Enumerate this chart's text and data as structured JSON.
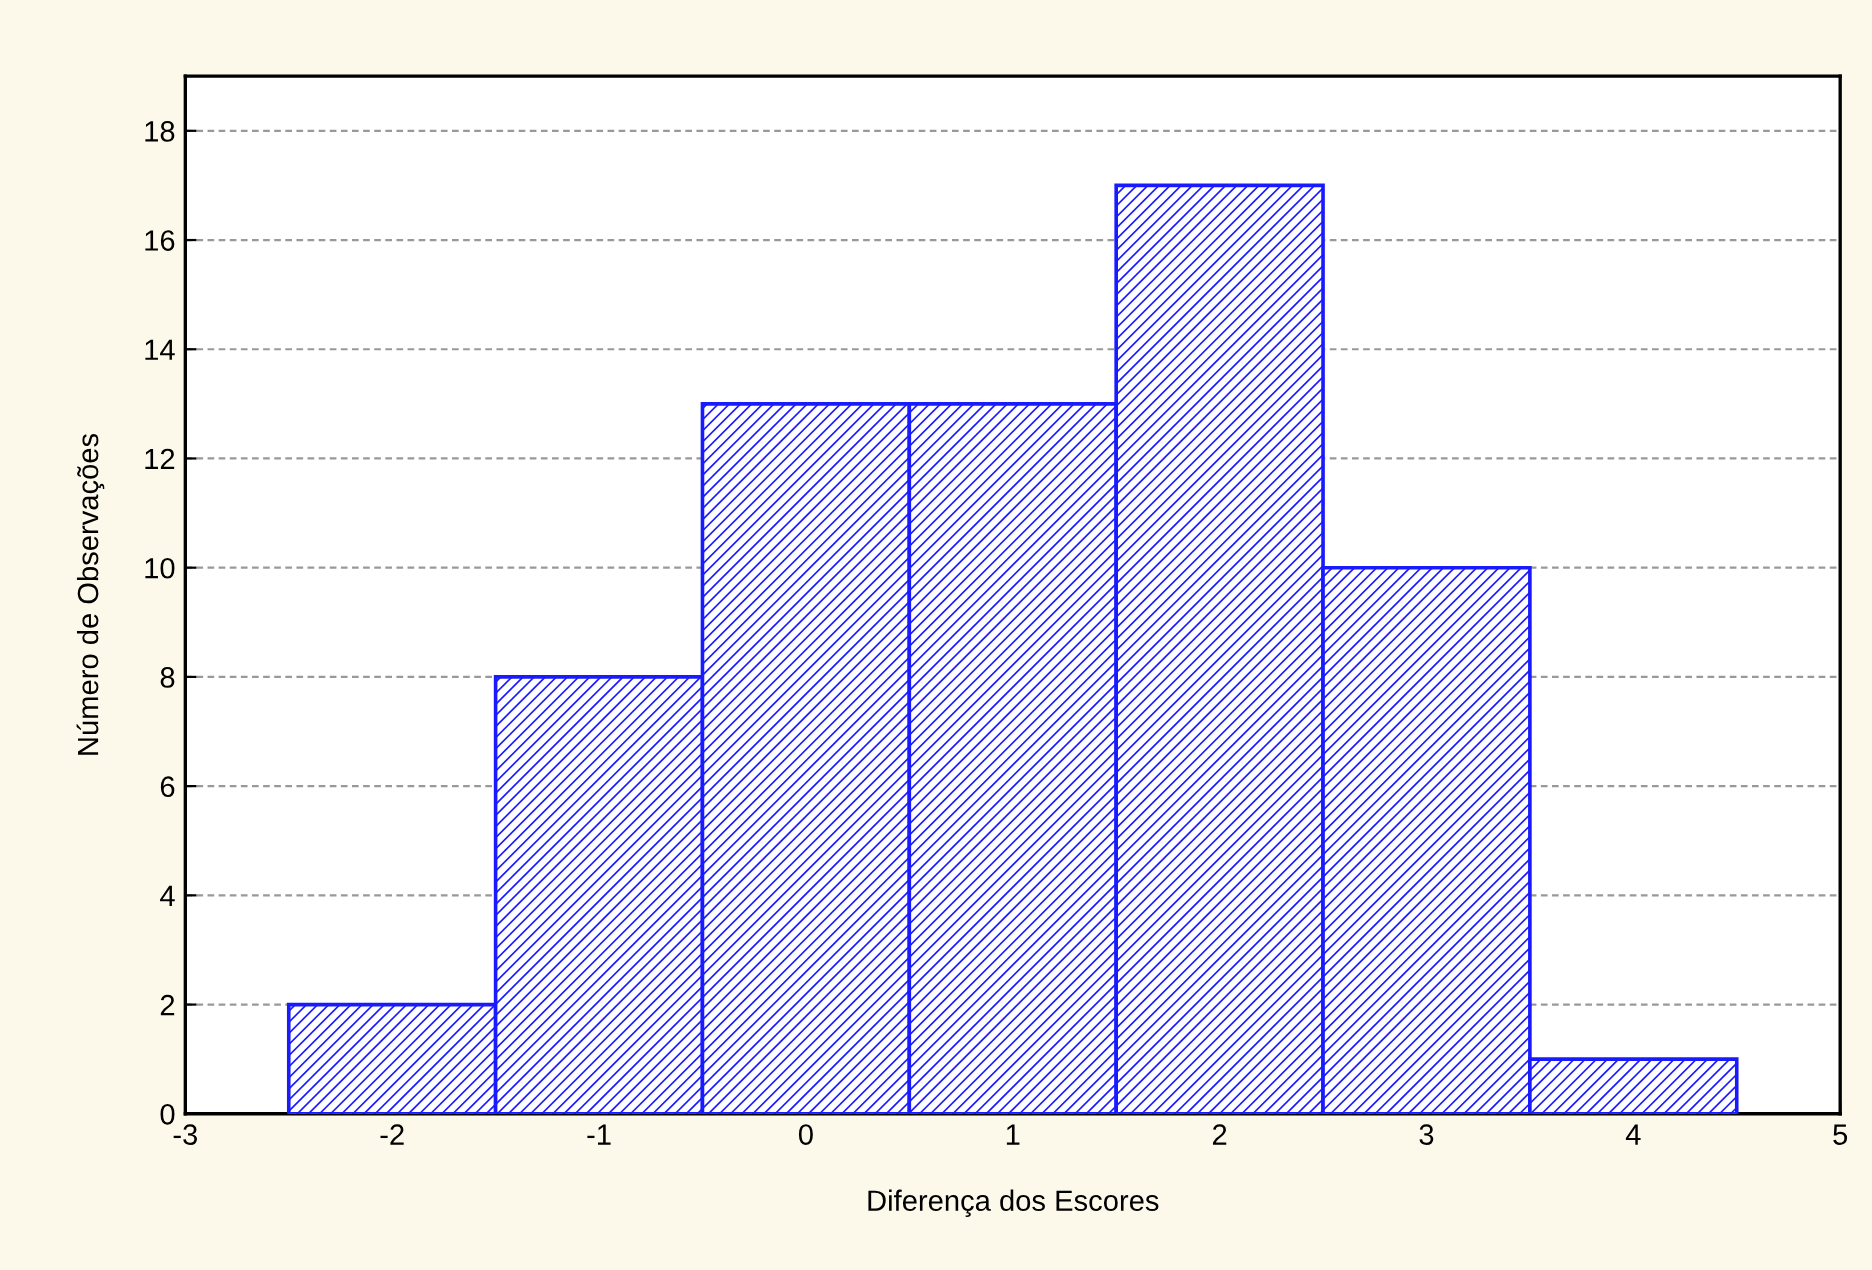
{
  "chart_data": {
    "type": "histogram",
    "xlabel": "Diferença dos Escores",
    "ylabel": "Número de Observações",
    "bins": [
      -2.5,
      -1.5,
      -0.5,
      0.5,
      1.5,
      2.5,
      3.5,
      4.5
    ],
    "values": [
      2,
      8,
      13,
      13,
      17,
      10,
      1
    ],
    "color": "#1a1aff",
    "xlim": [
      -3,
      5
    ],
    "xticks": [
      -3,
      -2,
      -1,
      0,
      1,
      2,
      3,
      4,
      5
    ],
    "ylim": [
      0,
      19
    ],
    "yticks": [
      0,
      2,
      4,
      6,
      8,
      10,
      12,
      14,
      16,
      18
    ],
    "grid": "y"
  }
}
